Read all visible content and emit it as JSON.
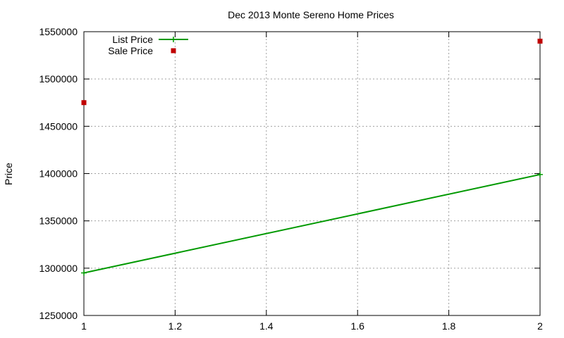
{
  "chart_data": {
    "type": "line",
    "title": "Dec 2013 Monte Sereno Home Prices",
    "xlabel": "",
    "ylabel": "Price",
    "xlim": [
      1,
      2
    ],
    "ylim": [
      1250000,
      1550000
    ],
    "x_ticks": [
      "1",
      "1.2",
      "1.4",
      "1.6",
      "1.8",
      "2"
    ],
    "y_ticks": [
      "1250000",
      "1300000",
      "1350000",
      "1400000",
      "1450000",
      "1500000",
      "1550000"
    ],
    "grid": true,
    "legend_position": "top-left",
    "series": [
      {
        "name": "List Price",
        "style": "line-points",
        "color": "#009900",
        "points": [
          {
            "x": 1,
            "y": 1295000
          },
          {
            "x": 2,
            "y": 1399000
          }
        ]
      },
      {
        "name": "Sale Price",
        "style": "points",
        "color": "#c00000",
        "points": [
          {
            "x": 1,
            "y": 1475000
          },
          {
            "x": 2,
            "y": 1540000
          }
        ]
      }
    ]
  }
}
